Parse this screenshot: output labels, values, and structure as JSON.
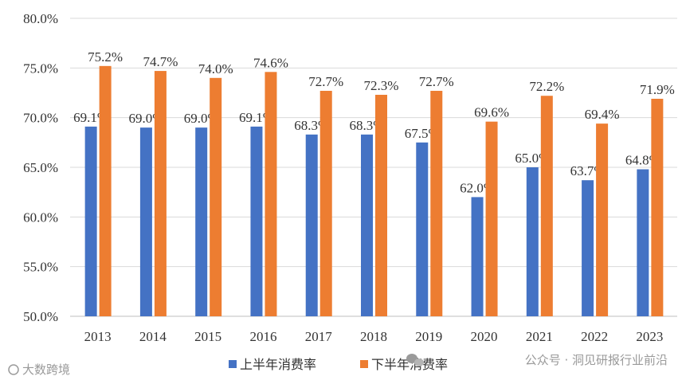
{
  "chart_data": {
    "type": "bar",
    "categories": [
      "2013",
      "2014",
      "2015",
      "2016",
      "2017",
      "2018",
      "2019",
      "2020",
      "2021",
      "2022",
      "2023"
    ],
    "series": [
      {
        "name": "上半年消费率",
        "color": "#4472c4",
        "values": [
          69.1,
          69.0,
          69.0,
          69.1,
          68.3,
          68.3,
          67.5,
          62.0,
          65.0,
          63.7,
          64.8
        ],
        "labels": [
          "69.1%",
          "69.0%",
          "69.0%",
          "69.1%",
          "68.3%",
          "68.3%",
          "67.5%",
          "62.0%",
          "65.0%",
          "63.7%",
          "64.8%"
        ]
      },
      {
        "name": "下半年消费率",
        "color": "#ed7d31",
        "values": [
          75.2,
          74.7,
          74.0,
          74.6,
          72.7,
          72.3,
          72.7,
          69.6,
          72.2,
          69.4,
          71.9
        ],
        "labels": [
          "75.2%",
          "74.7%",
          "74.0%",
          "74.6%",
          "72.7%",
          "72.3%",
          "72.7%",
          "69.6%",
          "72.2%",
          "69.4%",
          "71.9%"
        ]
      }
    ],
    "ylim": [
      50,
      80
    ],
    "yticks": [
      {
        "value": 80,
        "label": "80.0%"
      },
      {
        "value": 75,
        "label": "75.0%"
      },
      {
        "value": 70,
        "label": "70.0%"
      },
      {
        "value": 65,
        "label": "65.0%"
      },
      {
        "value": 60,
        "label": "60.0%"
      },
      {
        "value": 55,
        "label": "55.0%"
      },
      {
        "value": 50,
        "label": "50.0%"
      }
    ],
    "grid": true,
    "legend_position": "bottom"
  },
  "watermarks": {
    "left": "大数跨境",
    "right": "公众号 · 洞见研报行业前沿"
  },
  "colors": {
    "grid": "#d9d9d9",
    "axis": "#bfbfbf"
  }
}
